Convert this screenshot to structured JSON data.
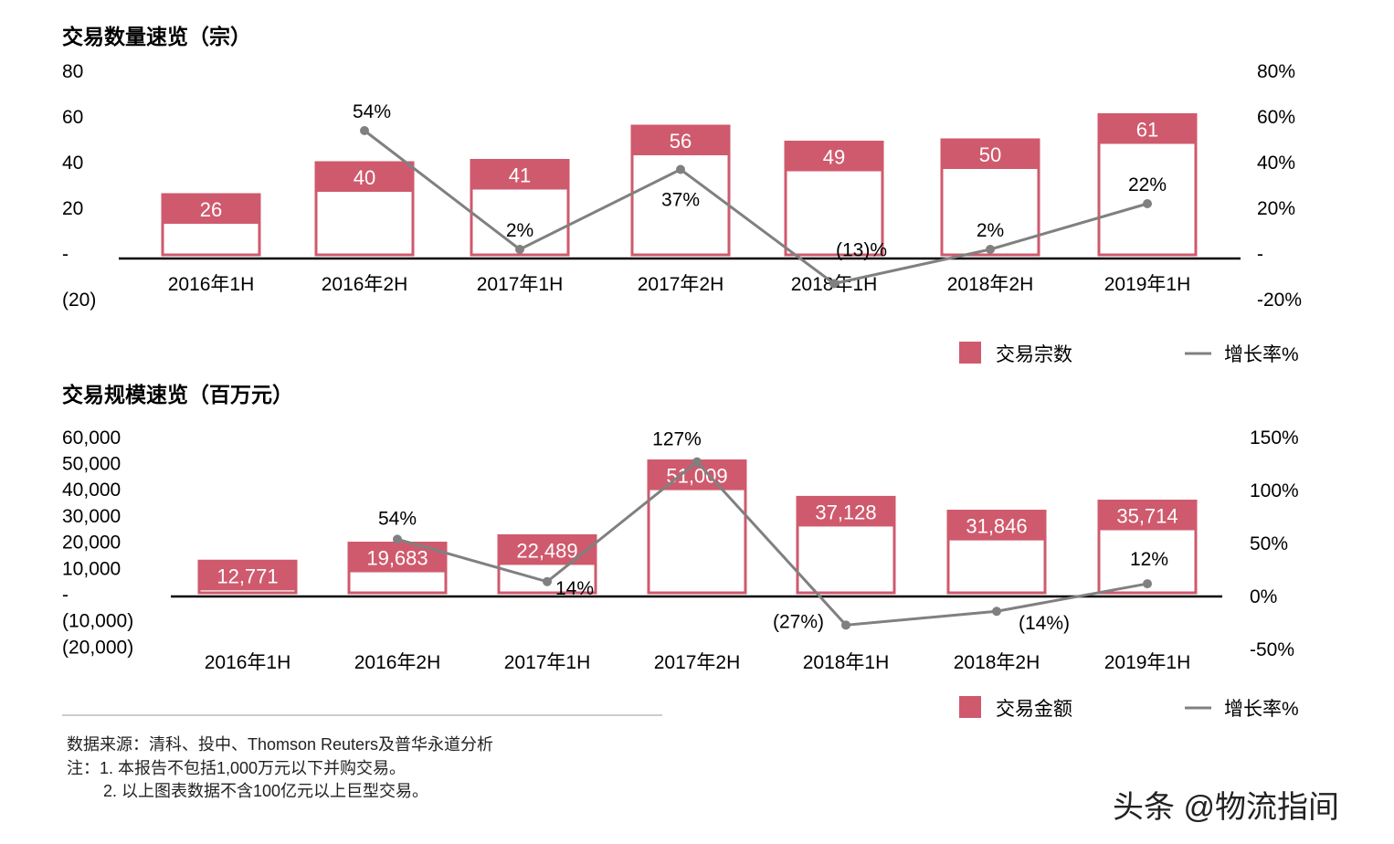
{
  "colors": {
    "bar": "#cf5a6d",
    "line": "#808080",
    "axis": "#000000"
  },
  "chart_data": [
    {
      "type": "bar",
      "title": "交易数量速览（宗）",
      "categories": [
        "2016年1H",
        "2016年2H",
        "2017年1H",
        "2017年2H",
        "2018年1H",
        "2018年2H",
        "2019年1H"
      ],
      "series": [
        {
          "name": "交易宗数",
          "type": "bar",
          "axis": "left",
          "values": [
            26,
            40,
            41,
            56,
            49,
            50,
            61
          ],
          "labels": [
            "26",
            "40",
            "41",
            "56",
            "49",
            "50",
            "61"
          ]
        },
        {
          "name": "增长率%",
          "type": "line",
          "axis": "right",
          "values": [
            null,
            54,
            2,
            37,
            -13,
            2,
            22
          ],
          "labels": [
            "",
            "54%",
            "2%",
            "37%",
            "(13)%",
            "2%",
            "22%"
          ]
        }
      ],
      "left_axis": {
        "range": [
          -20,
          80
        ],
        "ticks": [
          "(20)",
          "-",
          "20",
          "40",
          "60",
          "80"
        ],
        "tick_values": [
          -20,
          0,
          20,
          40,
          60,
          80
        ]
      },
      "right_axis": {
        "range": [
          -20,
          80
        ],
        "ticks": [
          "-20%",
          "-",
          "20%",
          "40%",
          "60%",
          "80%"
        ],
        "tick_values": [
          -20,
          0,
          20,
          40,
          60,
          80
        ]
      },
      "legend": "bottom-right",
      "grid": false
    },
    {
      "type": "bar",
      "title": "交易规模速览（百万元）",
      "categories": [
        "2016年1H",
        "2016年2H",
        "2017年1H",
        "2017年2H",
        "2018年1H",
        "2018年2H",
        "2019年1H"
      ],
      "series": [
        {
          "name": "交易金额",
          "type": "bar",
          "axis": "left",
          "values": [
            12771,
            19683,
            22489,
            51009,
            37128,
            31846,
            35714
          ],
          "labels": [
            "12,771",
            "19,683",
            "22,489",
            "51,009",
            "37,128",
            "31,846",
            "35,714"
          ]
        },
        {
          "name": "增长率%",
          "type": "line",
          "axis": "right",
          "values": [
            null,
            54,
            14,
            127,
            -27,
            -14,
            12
          ],
          "labels": [
            "",
            "54%",
            "14%",
            "127%",
            "(27%)",
            "(14%)",
            "12%"
          ]
        }
      ],
      "left_axis": {
        "range": [
          -20000,
          60000
        ],
        "ticks": [
          "(20,000)",
          "(10,000)",
          "-",
          "10,000",
          "20,000",
          "30,000",
          "40,000",
          "50,000",
          "60,000"
        ],
        "tick_values": [
          -20000,
          -10000,
          0,
          10000,
          20000,
          30000,
          40000,
          50000,
          60000
        ]
      },
      "right_axis": {
        "range": [
          -50,
          150
        ],
        "ticks": [
          "-50%",
          "0%",
          "50%",
          "100%",
          "150%"
        ],
        "tick_values": [
          -50,
          0,
          50,
          100,
          150
        ]
      },
      "legend": "bottom-right",
      "grid": false
    }
  ],
  "notes": {
    "source": "数据来源：清科、投中、Thomson Reuters及普华永道分析",
    "note1": "注：1. 本报告不包括1,000万元以下并购交易。",
    "note2": "2. 以上图表数据不含100亿元以上巨型交易。"
  },
  "watermark": "头条 @物流指间"
}
